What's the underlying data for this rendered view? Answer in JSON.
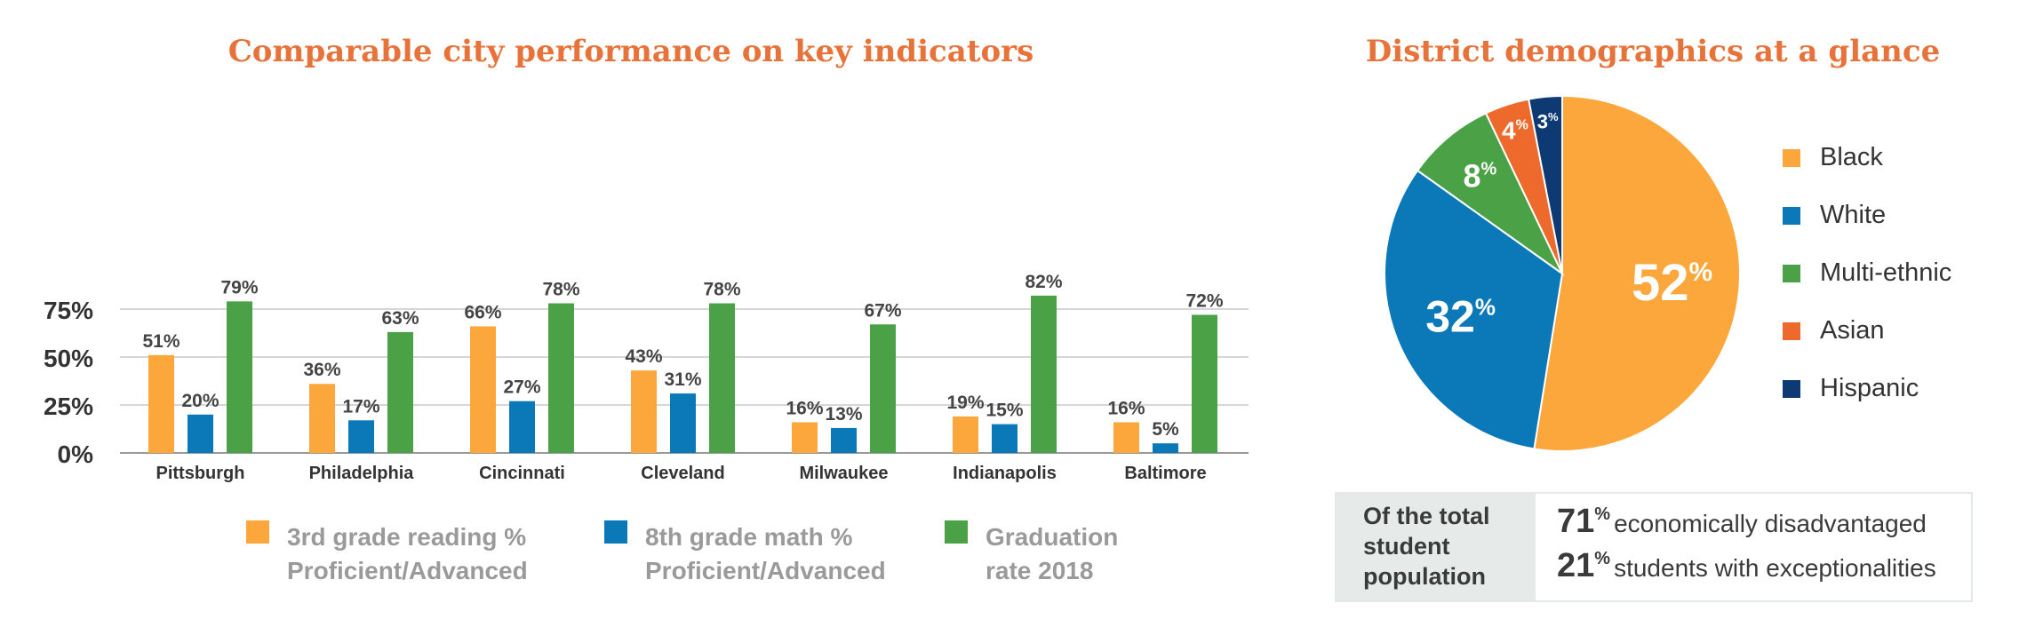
{
  "bar_title": "Comparable city performance on key indicators",
  "pie_title": "District demographics at a glance",
  "colors": {
    "reading": "#FCA73B",
    "math": "#0B78B8",
    "grad": "#4AA146"
  },
  "chart_data": [
    {
      "type": "bar",
      "title": "Comparable city performance on key indicators",
      "categories": [
        "Pittsburgh",
        "Philadelphia",
        "Cincinnati",
        "Cleveland",
        "Milwaukee",
        "Indianapolis",
        "Baltimore"
      ],
      "ylim": [
        0,
        75
      ],
      "yticks": [
        "0%",
        "25%",
        "50%",
        "75%"
      ],
      "grid": true,
      "series": [
        {
          "name": "3rd grade reading % Proficient/Advanced",
          "values": [
            51,
            36,
            66,
            43,
            16,
            19,
            16
          ],
          "labels": [
            "51%",
            "36%",
            "66%",
            "43%",
            "16%",
            "19%",
            "16%"
          ]
        },
        {
          "name": "8th grade math % Proficient/Advanced",
          "values": [
            20,
            17,
            27,
            31,
            13,
            15,
            5
          ],
          "labels": [
            "20%",
            "17%",
            "27%",
            "31%",
            "13%",
            "15%",
            "5%"
          ]
        },
        {
          "name": "Graduation rate 2018",
          "values": [
            79,
            63,
            78,
            78,
            67,
            82,
            72
          ],
          "labels": [
            "79%",
            "63%",
            "78%",
            "78%",
            "67%",
            "82%",
            "72%"
          ]
        }
      ],
      "legend": [
        {
          "line1": "3rd grade reading %",
          "line2": "Proficient/Advanced"
        },
        {
          "line1": "8th grade math %",
          "line2": "Proficient/Advanced"
        },
        {
          "line1": "Graduation",
          "line2": "rate 2018"
        }
      ],
      "legend_placement": "bottom"
    },
    {
      "type": "pie",
      "title": "District demographics at a glance",
      "slices": [
        {
          "name": "Black",
          "value": 52,
          "color": "#FCA73B",
          "label": "52"
        },
        {
          "name": "White",
          "value": 32,
          "color": "#0B78B8",
          "label": "32"
        },
        {
          "name": "Multi-ethnic",
          "value": 8,
          "color": "#4AA146",
          "label": "8"
        },
        {
          "name": "Asian",
          "value": 4,
          "color": "#EE6A2C",
          "label": "4"
        },
        {
          "name": "Hispanic",
          "value": 3,
          "color": "#0E3A73",
          "label": "3"
        }
      ],
      "label_suffix": "%",
      "legend_placement": "right"
    }
  ],
  "stats": {
    "label": "Of the total student population",
    "label_lines": [
      "Of the total",
      "student",
      "population"
    ],
    "items": [
      {
        "number": "71",
        "suffix": "%",
        "text": "economically disadvantaged"
      },
      {
        "number": "21",
        "suffix": "%",
        "text": "students with exceptionalities"
      }
    ]
  }
}
